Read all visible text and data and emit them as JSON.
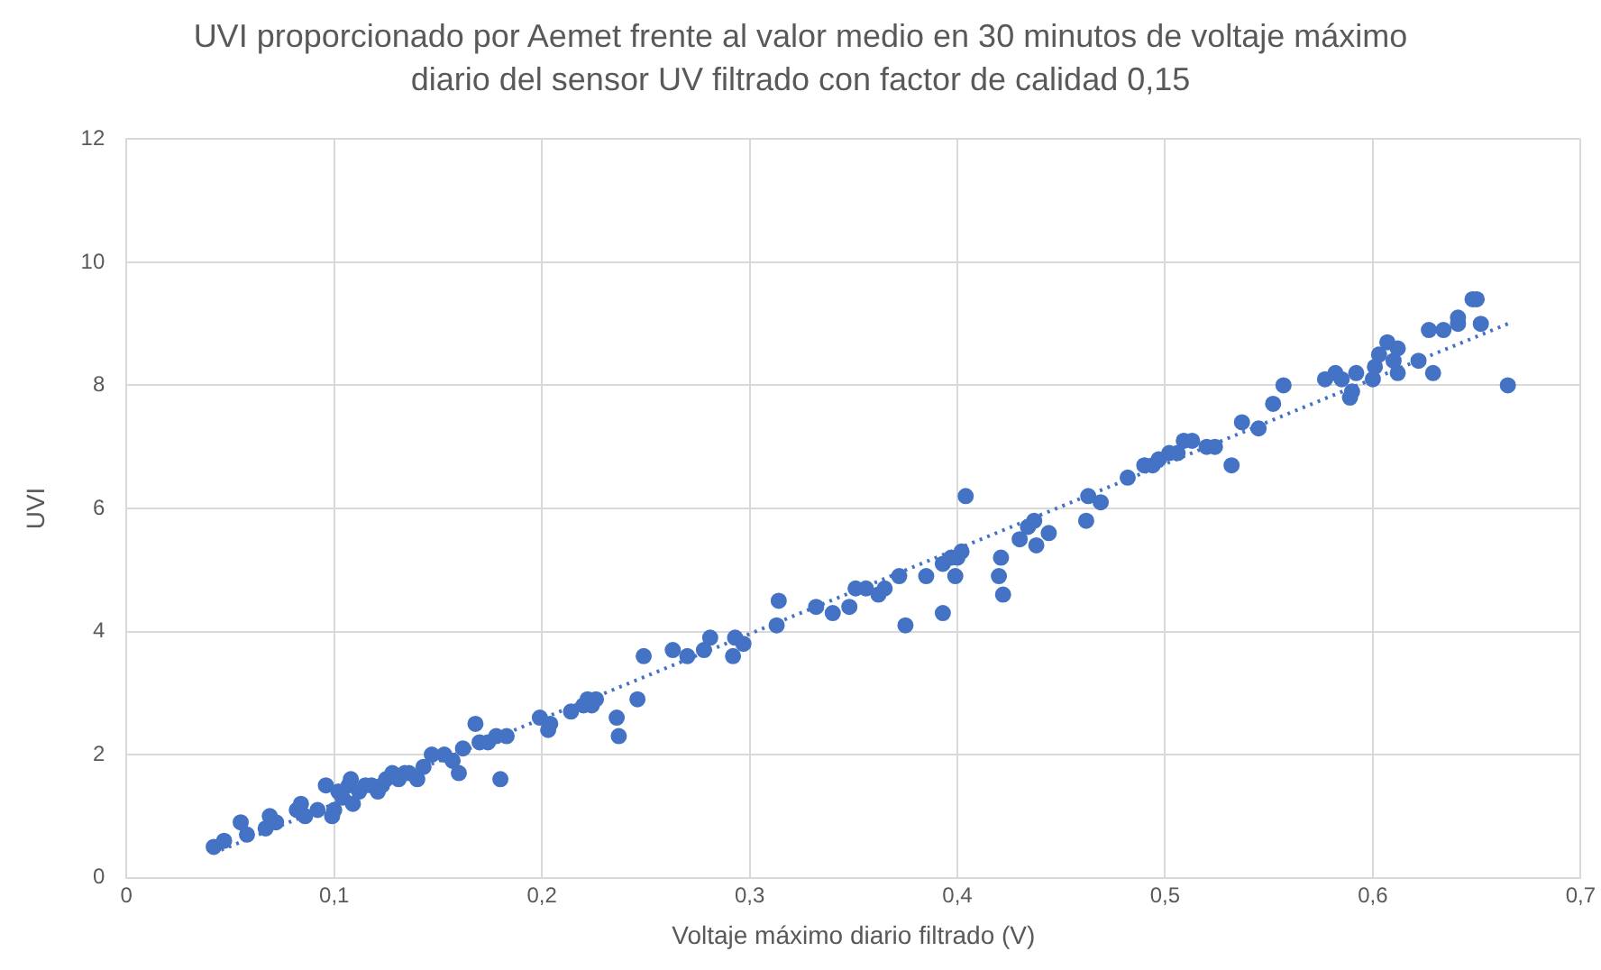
{
  "chart_data": {
    "type": "scatter",
    "title": "UVI proporcionado por Aemet frente al valor medio en 30 minutos de voltaje máximo diario del sensor UV filtrado con factor de calidad 0,15",
    "xlabel": "Voltaje máximo diario filtrado (V)",
    "ylabel": "UVI",
    "xlim": [
      0,
      0.7
    ],
    "xticks": [
      0,
      {
        "value": 0.1,
        "label": "0,1"
      },
      {
        "value": 0.2,
        "label": "0,2"
      },
      {
        "value": 0.3,
        "label": "0,3"
      },
      {
        "value": 0.4,
        "label": "0,4"
      },
      {
        "value": 0.5,
        "label": "0,5"
      },
      {
        "value": 0.6,
        "label": "0,6"
      },
      {
        "value": 0.7,
        "label": "0,7"
      }
    ],
    "ylim": [
      0,
      12
    ],
    "yticks": [
      0,
      2,
      4,
      6,
      8,
      10,
      12
    ],
    "grid": true,
    "legend": false,
    "series": [
      {
        "type": "scatter",
        "color": "#4472c4",
        "marker": "circle",
        "x": [
          0.042,
          0.047,
          0.055,
          0.058,
          0.067,
          0.069,
          0.072,
          0.082,
          0.084,
          0.086,
          0.092,
          0.096,
          0.099,
          0.1,
          0.102,
          0.104,
          0.107,
          0.108,
          0.109,
          0.112,
          0.115,
          0.118,
          0.121,
          0.123,
          0.125,
          0.128,
          0.131,
          0.134,
          0.136,
          0.14,
          0.143,
          0.147,
          0.153,
          0.157,
          0.16,
          0.162,
          0.168,
          0.17,
          0.174,
          0.178,
          0.18,
          0.183,
          0.199,
          0.203,
          0.204,
          0.214,
          0.22,
          0.222,
          0.224,
          0.226,
          0.236,
          0.237,
          0.246,
          0.249,
          0.263,
          0.27,
          0.278,
          0.281,
          0.292,
          0.293,
          0.297,
          0.313,
          0.314,
          0.332,
          0.34,
          0.348,
          0.351,
          0.356,
          0.362,
          0.365,
          0.372,
          0.375,
          0.385,
          0.393,
          0.393,
          0.397,
          0.399,
          0.4,
          0.402,
          0.404,
          0.42,
          0.421,
          0.422,
          0.43,
          0.434,
          0.437,
          0.438,
          0.444,
          0.462,
          0.463,
          0.469,
          0.482,
          0.49,
          0.494,
          0.497,
          0.502,
          0.506,
          0.509,
          0.513,
          0.52,
          0.524,
          0.532,
          0.537,
          0.545,
          0.552,
          0.557,
          0.577,
          0.582,
          0.585,
          0.589,
          0.59,
          0.592,
          0.6,
          0.601,
          0.603,
          0.607,
          0.61,
          0.612,
          0.612,
          0.622,
          0.627,
          0.629,
          0.634,
          0.641,
          0.641,
          0.648,
          0.65,
          0.652,
          0.665
        ],
        "values": [
          0.5,
          0.6,
          0.9,
          0.7,
          0.8,
          1.0,
          0.9,
          1.1,
          1.2,
          1.0,
          1.1,
          1.5,
          1.0,
          1.1,
          1.4,
          1.3,
          1.5,
          1.6,
          1.2,
          1.4,
          1.5,
          1.5,
          1.4,
          1.5,
          1.6,
          1.7,
          1.6,
          1.7,
          1.7,
          1.6,
          1.8,
          2.0,
          2.0,
          1.9,
          1.7,
          2.1,
          2.5,
          2.2,
          2.2,
          2.3,
          1.6,
          2.3,
          2.6,
          2.4,
          2.5,
          2.7,
          2.8,
          2.9,
          2.8,
          2.9,
          2.6,
          2.3,
          2.9,
          3.6,
          3.7,
          3.6,
          3.7,
          3.9,
          3.6,
          3.9,
          3.8,
          4.1,
          4.5,
          4.4,
          4.3,
          4.4,
          4.7,
          4.7,
          4.6,
          4.7,
          4.9,
          4.1,
          4.9,
          4.3,
          5.1,
          5.2,
          4.9,
          5.2,
          5.3,
          6.2,
          4.9,
          5.2,
          4.6,
          5.5,
          5.7,
          5.8,
          5.4,
          5.6,
          5.8,
          6.2,
          6.1,
          6.5,
          6.7,
          6.7,
          6.8,
          6.9,
          6.9,
          7.1,
          7.1,
          7.0,
          7.0,
          6.7,
          7.4,
          7.3,
          7.7,
          8.0,
          8.1,
          8.2,
          8.1,
          7.8,
          7.9,
          8.2,
          8.1,
          8.3,
          8.5,
          8.7,
          8.4,
          8.6,
          8.2,
          8.4,
          8.9,
          8.2,
          8.9,
          9.0,
          9.1,
          9.4,
          9.4,
          9.0,
          8.0
        ]
      },
      {
        "type": "line",
        "color": "#4472c4",
        "line_style": "dotted",
        "marker": "none",
        "x": [
          0.042,
          0.665
        ],
        "values": [
          0.4,
          9.0
        ]
      }
    ]
  }
}
